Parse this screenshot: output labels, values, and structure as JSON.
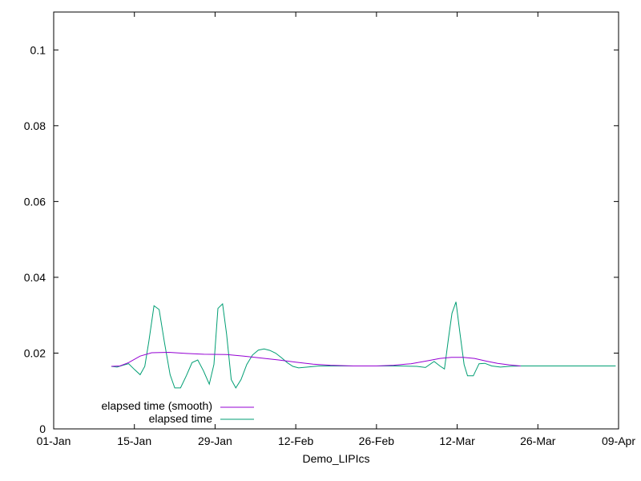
{
  "chart_data": {
    "type": "line",
    "title": "",
    "xlabel": "Demo_LIPIcs",
    "ylabel": "",
    "x_range": [
      "01-Jan",
      "09-Apr"
    ],
    "ylim": [
      0,
      0.11
    ],
    "x_ticks": [
      "01-Jan",
      "15-Jan",
      "29-Jan",
      "12-Feb",
      "26-Feb",
      "12-Mar",
      "26-Mar",
      "09-Apr"
    ],
    "y_ticks": [
      "0",
      "0.02",
      "0.04",
      "0.06",
      "0.08",
      "0.1"
    ],
    "grid": false,
    "legend": "bottom-left",
    "series": [
      {
        "name": "elapsed time (smooth)",
        "color": "#9400d3",
        "points": [
          {
            "x": 10.0,
            "y": 0.0165
          },
          {
            "x": 11.5,
            "y": 0.0166
          },
          {
            "x": 13.0,
            "y": 0.0175
          },
          {
            "x": 15.0,
            "y": 0.0192
          },
          {
            "x": 17.0,
            "y": 0.0201
          },
          {
            "x": 20.0,
            "y": 0.0202
          },
          {
            "x": 23.0,
            "y": 0.0199
          },
          {
            "x": 26.0,
            "y": 0.0197
          },
          {
            "x": 30.0,
            "y": 0.0196
          },
          {
            "x": 33.0,
            "y": 0.0192
          },
          {
            "x": 36.0,
            "y": 0.0187
          },
          {
            "x": 39.0,
            "y": 0.0182
          },
          {
            "x": 42.0,
            "y": 0.0176
          },
          {
            "x": 45.0,
            "y": 0.0171
          },
          {
            "x": 48.0,
            "y": 0.0168
          },
          {
            "x": 52.0,
            "y": 0.0166
          },
          {
            "x": 56.0,
            "y": 0.0166
          },
          {
            "x": 59.0,
            "y": 0.0168
          },
          {
            "x": 62.0,
            "y": 0.0172
          },
          {
            "x": 65.0,
            "y": 0.018
          },
          {
            "x": 67.0,
            "y": 0.0186
          },
          {
            "x": 69.0,
            "y": 0.0189
          },
          {
            "x": 71.0,
            "y": 0.0189
          },
          {
            "x": 73.0,
            "y": 0.0186
          },
          {
            "x": 75.0,
            "y": 0.0179
          },
          {
            "x": 77.0,
            "y": 0.0173
          },
          {
            "x": 79.0,
            "y": 0.0169
          },
          {
            "x": 81.0,
            "y": 0.0166
          }
        ]
      },
      {
        "name": "elapsed time",
        "color": "#009e73",
        "points": [
          {
            "x": 10.0,
            "y": 0.0165
          },
          {
            "x": 11.0,
            "y": 0.0163
          },
          {
            "x": 12.0,
            "y": 0.0168
          },
          {
            "x": 13.0,
            "y": 0.0172
          },
          {
            "x": 14.0,
            "y": 0.0157
          },
          {
            "x": 15.0,
            "y": 0.0143
          },
          {
            "x": 15.8,
            "y": 0.0165
          },
          {
            "x": 16.5,
            "y": 0.023
          },
          {
            "x": 17.4,
            "y": 0.0325
          },
          {
            "x": 18.3,
            "y": 0.0315
          },
          {
            "x": 19.2,
            "y": 0.023
          },
          {
            "x": 20.2,
            "y": 0.0143
          },
          {
            "x": 21.0,
            "y": 0.0108
          },
          {
            "x": 22.0,
            "y": 0.0108
          },
          {
            "x": 23.0,
            "y": 0.014
          },
          {
            "x": 24.0,
            "y": 0.0175
          },
          {
            "x": 25.0,
            "y": 0.0182
          },
          {
            "x": 26.0,
            "y": 0.0153
          },
          {
            "x": 27.0,
            "y": 0.0118
          },
          {
            "x": 27.8,
            "y": 0.017
          },
          {
            "x": 28.5,
            "y": 0.0318
          },
          {
            "x": 29.3,
            "y": 0.033
          },
          {
            "x": 30.0,
            "y": 0.025
          },
          {
            "x": 30.8,
            "y": 0.013
          },
          {
            "x": 31.6,
            "y": 0.0108
          },
          {
            "x": 32.5,
            "y": 0.013
          },
          {
            "x": 33.5,
            "y": 0.017
          },
          {
            "x": 34.5,
            "y": 0.0195
          },
          {
            "x": 35.5,
            "y": 0.0208
          },
          {
            "x": 36.5,
            "y": 0.0211
          },
          {
            "x": 37.5,
            "y": 0.0207
          },
          {
            "x": 38.5,
            "y": 0.02
          },
          {
            "x": 39.5,
            "y": 0.0188
          },
          {
            "x": 40.5,
            "y": 0.0175
          },
          {
            "x": 41.5,
            "y": 0.0165
          },
          {
            "x": 42.5,
            "y": 0.0161
          },
          {
            "x": 44.0,
            "y": 0.0163
          },
          {
            "x": 46.0,
            "y": 0.0166
          },
          {
            "x": 50.0,
            "y": 0.0166
          },
          {
            "x": 55.0,
            "y": 0.0166
          },
          {
            "x": 60.0,
            "y": 0.0166
          },
          {
            "x": 63.0,
            "y": 0.0165
          },
          {
            "x": 64.5,
            "y": 0.0162
          },
          {
            "x": 66.0,
            "y": 0.0178
          },
          {
            "x": 67.0,
            "y": 0.0166
          },
          {
            "x": 67.8,
            "y": 0.0158
          },
          {
            "x": 68.5,
            "y": 0.024
          },
          {
            "x": 69.1,
            "y": 0.0305
          },
          {
            "x": 69.8,
            "y": 0.0335
          },
          {
            "x": 70.5,
            "y": 0.025
          },
          {
            "x": 71.2,
            "y": 0.017
          },
          {
            "x": 71.8,
            "y": 0.014
          },
          {
            "x": 72.8,
            "y": 0.014
          },
          {
            "x": 73.8,
            "y": 0.0172
          },
          {
            "x": 74.8,
            "y": 0.0173
          },
          {
            "x": 76.0,
            "y": 0.0166
          },
          {
            "x": 77.5,
            "y": 0.0163
          },
          {
            "x": 79.0,
            "y": 0.0165
          },
          {
            "x": 81.0,
            "y": 0.0166
          },
          {
            "x": 85.0,
            "y": 0.0166
          },
          {
            "x": 90.0,
            "y": 0.0166
          },
          {
            "x": 95.0,
            "y": 0.0166
          },
          {
            "x": 97.5,
            "y": 0.0166
          }
        ]
      }
    ]
  }
}
